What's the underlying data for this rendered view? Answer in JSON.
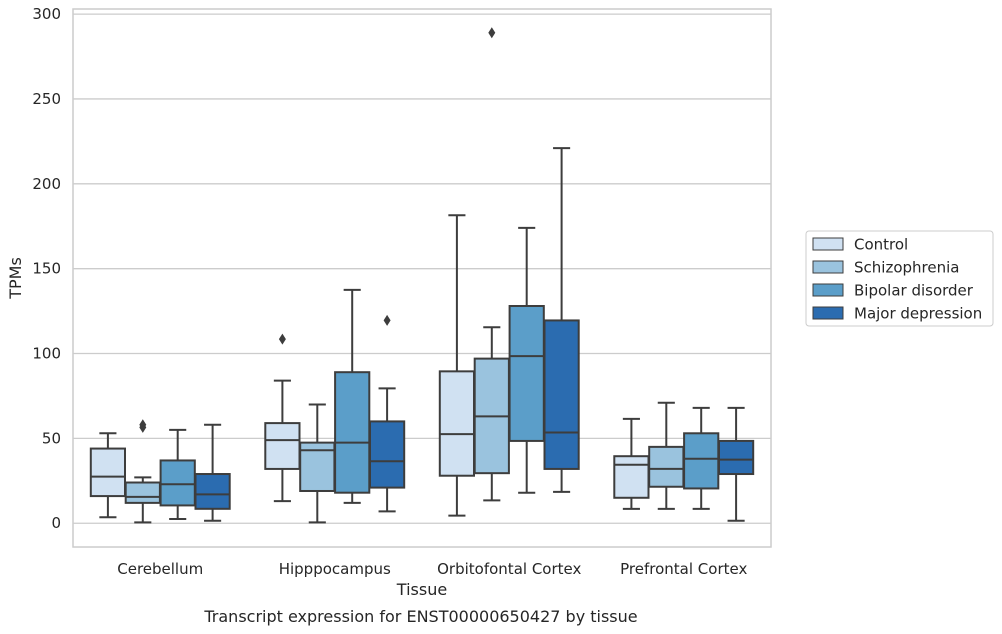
{
  "caption": "Transcript expression for ENST00000650427 by tissue",
  "chart_data": {
    "type": "box",
    "title": "",
    "xlabel": "Tissue",
    "ylabel": "TPMs",
    "ylim": [
      -14,
      303
    ],
    "yticks": [
      0,
      50,
      100,
      150,
      200,
      250,
      300
    ],
    "grid": "horizontal",
    "legend_position": "right",
    "categories": [
      "Cerebellum",
      "Hipppocampus",
      "Orbitofontal Cortex",
      "Prefrontal Cortex"
    ],
    "series": [
      {
        "name": "Control",
        "color": "#d0e1f2",
        "boxes": [
          {
            "whisker_low": 3.5,
            "q1": 16,
            "median": 27.5,
            "q3": 44,
            "whisker_high": 53,
            "outliers": []
          },
          {
            "whisker_low": 13,
            "q1": 32,
            "median": 49,
            "q3": 59,
            "whisker_high": 84,
            "outliers": [
              108.5
            ]
          },
          {
            "whisker_low": 4.5,
            "q1": 28,
            "median": 52.5,
            "q3": 89.5,
            "whisker_high": 181.5,
            "outliers": []
          },
          {
            "whisker_low": 8.5,
            "q1": 15,
            "median": 34.5,
            "q3": 39.5,
            "whisker_high": 61.5,
            "outliers": []
          }
        ]
      },
      {
        "name": "Schizophrenia",
        "color": "#9ac3de",
        "boxes": [
          {
            "whisker_low": 0.5,
            "q1": 12,
            "median": 15.5,
            "q3": 24,
            "whisker_high": 27,
            "outliers": [
              56.5,
              58
            ]
          },
          {
            "whisker_low": 0.5,
            "q1": 19,
            "median": 43,
            "q3": 47.5,
            "whisker_high": 70,
            "outliers": []
          },
          {
            "whisker_low": 13.5,
            "q1": 29.5,
            "median": 63,
            "q3": 97,
            "whisker_high": 115.5,
            "outliers": [
              289
            ]
          },
          {
            "whisker_low": 8.5,
            "q1": 21.5,
            "median": 32,
            "q3": 45,
            "whisker_high": 71,
            "outliers": []
          }
        ]
      },
      {
        "name": "Bipolar disorder",
        "color": "#5b9ec9",
        "boxes": [
          {
            "whisker_low": 2.5,
            "q1": 10.5,
            "median": 23,
            "q3": 37,
            "whisker_high": 55,
            "outliers": []
          },
          {
            "whisker_low": 12,
            "q1": 18,
            "median": 47.5,
            "q3": 89,
            "whisker_high": 137.5,
            "outliers": []
          },
          {
            "whisker_low": 18,
            "q1": 48.5,
            "median": 98.5,
            "q3": 128,
            "whisker_high": 174,
            "outliers": []
          },
          {
            "whisker_low": 8.5,
            "q1": 20.5,
            "median": 38,
            "q3": 53,
            "whisker_high": 68,
            "outliers": []
          }
        ]
      },
      {
        "name": "Major depression",
        "color": "#2b6cb0",
        "boxes": [
          {
            "whisker_low": 1.5,
            "q1": 8.5,
            "median": 17,
            "q3": 29,
            "whisker_high": 58,
            "outliers": []
          },
          {
            "whisker_low": 7,
            "q1": 21,
            "median": 36.5,
            "q3": 60,
            "whisker_high": 79.5,
            "outliers": [
              119.5
            ]
          },
          {
            "whisker_low": 18.5,
            "q1": 32,
            "median": 53.5,
            "q3": 119.5,
            "whisker_high": 221,
            "outliers": []
          },
          {
            "whisker_low": 1.5,
            "q1": 29,
            "median": 37.5,
            "q3": 48.5,
            "whisker_high": 68,
            "outliers": []
          }
        ]
      }
    ]
  }
}
